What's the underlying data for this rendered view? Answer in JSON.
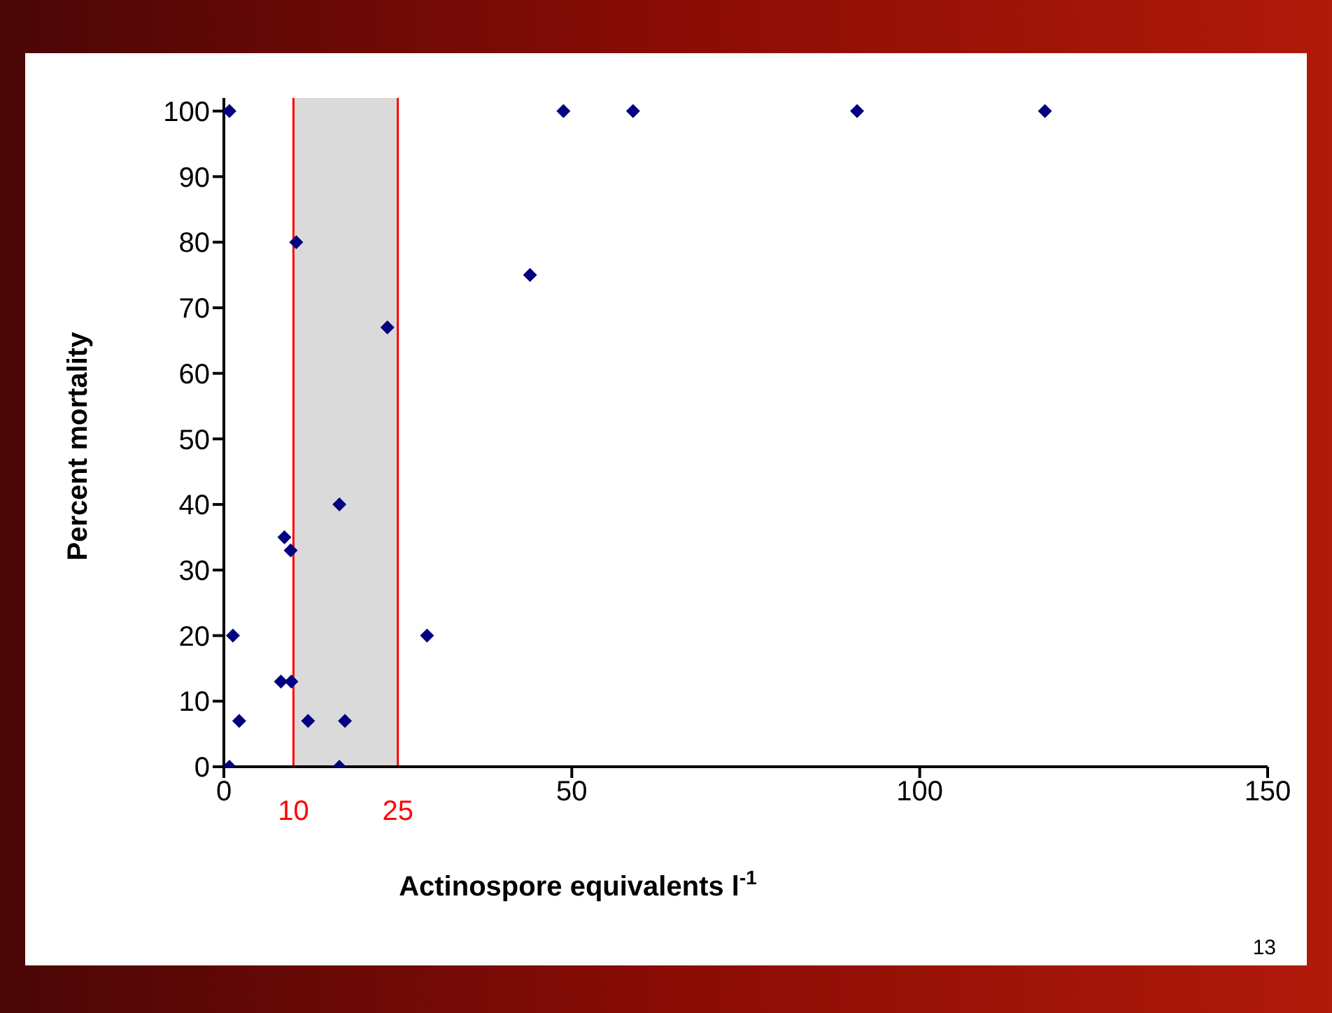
{
  "chart_data": {
    "type": "scatter",
    "xlabel": "Actinospore equivalents l$^{-1}$",
    "ylabel": "Percent mortality",
    "annotations": [
      "13"
    ],
    "marker": "diamond",
    "grid": false,
    "series": [
      {
        "color": "#000080",
        "x": [
          0.8,
          10.4,
          23.5,
          16.6,
          8.7,
          9.6,
          1.3,
          29.2,
          8.2,
          9.7,
          2.2,
          12.1,
          17.4,
          0.8,
          16.6,
          44.0,
          48.8,
          58.8,
          91.0,
          118.0
        ],
        "values": [
          100,
          80,
          67,
          40,
          35,
          33,
          20,
          20,
          13,
          13,
          7,
          7,
          7,
          0,
          0,
          75,
          100,
          100,
          100,
          100
        ]
      }
    ],
    "xlim": [
      0,
      150
    ],
    "xticks": [
      0,
      50,
      100,
      150
    ],
    "ylim": [
      0,
      102
    ],
    "yticks": [
      0,
      10,
      20,
      30,
      40,
      50,
      60,
      70,
      80,
      90,
      100
    ],
    "bands": [
      {
        "axis": "x",
        "from": 10,
        "to": 25,
        "color": "#d3d3d3"
      }
    ],
    "ref_lines": [
      {
        "axis": "x",
        "value": 10,
        "label": "10",
        "color": "#ff0000"
      },
      {
        "axis": "x",
        "value": 25,
        "label": "25",
        "color": "#ff0000"
      }
    ]
  }
}
